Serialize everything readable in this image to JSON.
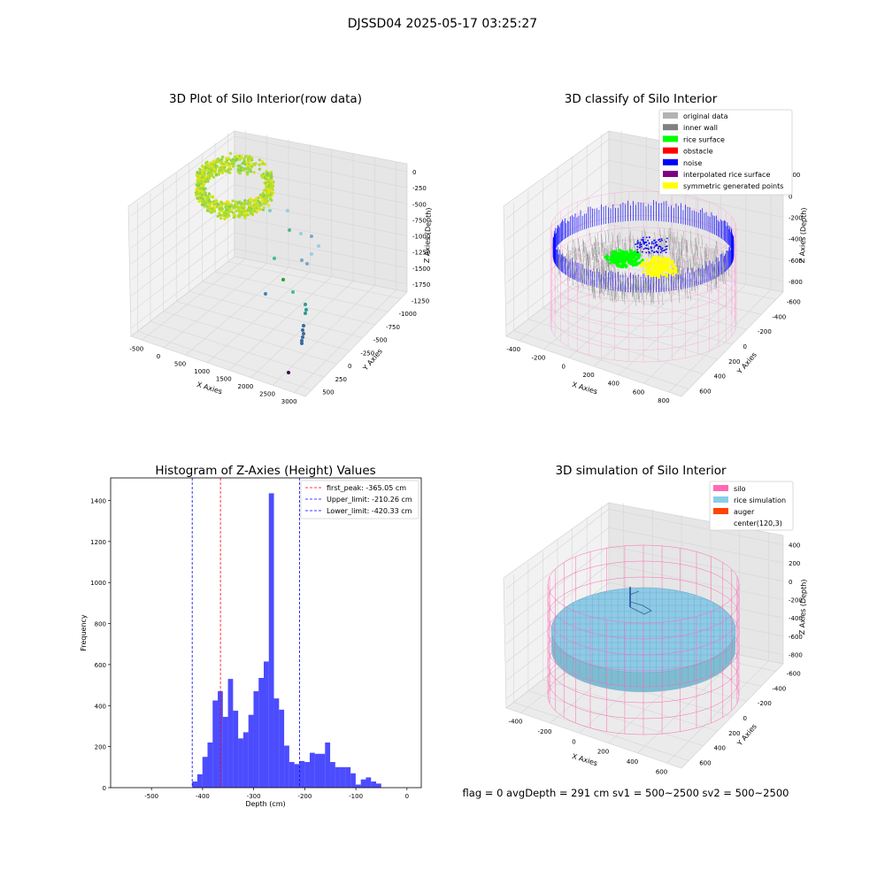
{
  "figure": {
    "suptitle": "DJSSD04 2025-05-17 03:25:27",
    "footer": "flag = 0     avgDepth = 291 cm  sv1 = 500~2500  sv2 = 500~2500"
  },
  "panels": {
    "raw": {
      "title": "3D Plot of Silo Interior(row data)",
      "xlabel": "X Axies",
      "ylabel": "Y Axies",
      "zlabel": "Z Axies (Depth)",
      "xticks": [
        "-500",
        "0",
        "500",
        "1000",
        "1500",
        "2000",
        "2500",
        "3000"
      ],
      "yticks": [
        "-1250",
        "-1000",
        "-750",
        "-500",
        "-250",
        "0",
        "250",
        "500"
      ],
      "zticks": [
        "0",
        "-250",
        "-500",
        "-750",
        "-1000",
        "-1250",
        "-1500",
        "-1750"
      ]
    },
    "classify": {
      "title": "3D classify of Silo Interior",
      "xlabel": "X Axies",
      "ylabel": "Y Axies",
      "zlabel": "Z Axies (Depth)",
      "xticks": [
        "-400",
        "-200",
        "0",
        "200",
        "400",
        "600",
        "800"
      ],
      "yticks": [
        "-600",
        "-400",
        "-200",
        "0",
        "200",
        "400",
        "600"
      ],
      "zticks": [
        "200",
        "0",
        "-200",
        "-400",
        "-600",
        "-800"
      ],
      "legend": [
        {
          "label": "original data",
          "color": "#b3b3b3"
        },
        {
          "label": "inner wall",
          "color": "#808080"
        },
        {
          "label": "rice surface",
          "color": "#00ff00"
        },
        {
          "label": "obstacle",
          "color": "#ff0000"
        },
        {
          "label": "noise",
          "color": "#0000ff"
        },
        {
          "label": "interpolated rice surface",
          "color": "#800080"
        },
        {
          "label": "symmetric generated points",
          "color": "#ffff00"
        }
      ]
    },
    "simulation": {
      "title": "3D simulation of Silo Interior",
      "xlabel": "X Axies",
      "ylabel": "Y Axies",
      "zlabel": "Z Axies (Depth)",
      "xticks": [
        "-400",
        "-200",
        "0",
        "200",
        "400",
        "600"
      ],
      "yticks": [
        "-600",
        "-400",
        "-200",
        "0",
        "200",
        "400",
        "600"
      ],
      "zticks": [
        "400",
        "200",
        "0",
        "-200",
        "-400",
        "-600",
        "-800"
      ],
      "legend": [
        {
          "label": "silo",
          "color": "#ff69b4"
        },
        {
          "label": "rice simulation",
          "color": "#87ceeb"
        },
        {
          "label": "auger",
          "color": "#ff4500"
        },
        {
          "label": "center(120,3)",
          "color": "#ffffff"
        }
      ]
    }
  },
  "chart_data": [
    {
      "type": "histogram",
      "title": "Histogram of Z-Axies (Height) Values",
      "xlabel": "Depth (cm)",
      "ylabel": "Frequency",
      "xlim": [
        -580,
        28
      ],
      "ylim": [
        0,
        1510
      ],
      "xticks": [
        -500,
        -400,
        -300,
        -200,
        -100,
        0
      ],
      "yticks": [
        0,
        200,
        400,
        600,
        800,
        1000,
        1200,
        1400
      ],
      "bar_color": "#0000ff",
      "bin_start": -420.33,
      "bin_width": 10.0,
      "counts": [
        30,
        65,
        150,
        220,
        425,
        470,
        345,
        530,
        375,
        240,
        270,
        355,
        470,
        535,
        615,
        1435,
        435,
        380,
        205,
        125,
        115,
        130,
        125,
        170,
        165,
        165,
        220,
        125,
        100,
        100,
        100,
        70,
        15,
        40,
        50,
        30,
        20
      ],
      "vlines": [
        {
          "x": -365.05,
          "color": "#ff0000",
          "label": "first_peak: -365.05 cm"
        },
        {
          "x": -210.26,
          "color": "#0000ff",
          "label": "Upper_limit: -210.26 cm"
        },
        {
          "x": -420.33,
          "color": "#0000ff",
          "label": "Lower_limit: -420.33 cm"
        }
      ],
      "legend_position": "top-right"
    }
  ]
}
